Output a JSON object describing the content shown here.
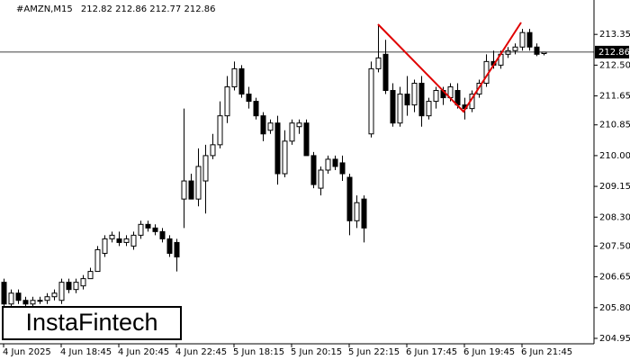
{
  "chart_data": {
    "type": "candlestick",
    "title": "#AMZN,M15",
    "header_ohlc": [
      212.82,
      212.86,
      212.77,
      212.86
    ],
    "last_price": 212.86,
    "watermark": "InstaFintech",
    "categories": [
      "4 Jun 2025",
      null,
      null,
      null,
      null,
      null,
      null,
      null,
      "4 Jun 18:45",
      null,
      null,
      null,
      null,
      null,
      null,
      null,
      "4 Jun 20:45",
      null,
      null,
      null,
      null,
      null,
      null,
      null,
      "4 Jun 22:45",
      null,
      null,
      null,
      null,
      null,
      null,
      null,
      "5 Jun 18:15",
      null,
      null,
      null,
      null,
      null,
      null,
      null,
      "5 Jun 20:15",
      null,
      null,
      null,
      null,
      null,
      null,
      null,
      "5 Jun 22:15",
      null,
      null,
      null,
      null,
      null,
      null,
      null,
      "6 Jun 17:45",
      null,
      null,
      null,
      null,
      null,
      null,
      null,
      "6 Jun 19:45",
      null,
      null,
      null,
      null,
      null,
      null,
      null,
      "6 Jun 21:45",
      null,
      null,
      null
    ],
    "open": [
      206.5,
      205.9,
      206.2,
      206.0,
      205.9,
      206.0,
      206.0,
      206.1,
      206.0,
      206.5,
      206.3,
      206.4,
      206.6,
      206.8,
      207.3,
      207.7,
      207.7,
      207.6,
      207.5,
      207.8,
      208.1,
      208.0,
      207.9,
      207.7,
      207.6,
      208.8,
      209.3,
      208.8,
      209.3,
      210.0,
      210.3,
      211.1,
      211.9,
      212.4,
      211.7,
      211.5,
      211.1,
      210.7,
      210.9,
      209.5,
      210.4,
      210.8,
      210.9,
      210.0,
      209.1,
      209.6,
      209.9,
      209.8,
      209.4,
      208.2,
      208.8,
      210.6,
      212.4,
      212.8,
      211.8,
      210.9,
      211.7,
      211.4,
      212.0,
      211.1,
      211.5,
      211.8,
      211.6,
      211.8,
      211.4,
      211.3,
      211.7,
      212.0,
      212.6,
      212.5,
      212.8,
      212.9,
      213.0,
      213.4,
      213.0,
      212.82
    ],
    "high": [
      206.6,
      206.3,
      206.3,
      206.1,
      206.1,
      206.1,
      206.2,
      206.3,
      206.6,
      206.6,
      206.6,
      206.7,
      206.9,
      207.5,
      207.8,
      207.9,
      207.9,
      207.8,
      207.9,
      208.2,
      208.2,
      208.1,
      208.0,
      207.8,
      207.7,
      211.3,
      209.5,
      210.2,
      210.3,
      210.6,
      211.5,
      212.2,
      212.6,
      212.5,
      211.9,
      211.6,
      211.2,
      211.0,
      211.1,
      210.7,
      211.0,
      211.0,
      211.0,
      210.1,
      209.7,
      210.0,
      210.0,
      210.0,
      209.5,
      208.9,
      208.9,
      212.6,
      213.6,
      213.2,
      212.0,
      211.9,
      212.2,
      212.1,
      212.2,
      211.6,
      211.9,
      211.9,
      212.0,
      212.0,
      211.6,
      211.8,
      212.1,
      212.8,
      212.9,
      212.9,
      213.0,
      213.1,
      213.5,
      213.5,
      213.1,
      212.86
    ],
    "low": [
      205.7,
      205.8,
      205.9,
      205.8,
      205.8,
      205.9,
      205.9,
      206.0,
      205.9,
      206.2,
      206.2,
      206.3,
      206.6,
      206.8,
      207.2,
      207.6,
      207.5,
      207.5,
      207.4,
      207.7,
      207.9,
      207.8,
      207.6,
      207.2,
      206.8,
      208.0,
      208.8,
      208.6,
      208.4,
      209.9,
      210.2,
      210.9,
      211.8,
      211.6,
      211.3,
      211.0,
      210.4,
      210.6,
      209.2,
      209.4,
      210.3,
      210.6,
      210.0,
      209.1,
      208.9,
      209.5,
      209.6,
      209.3,
      207.8,
      208.0,
      207.6,
      210.5,
      212.3,
      211.7,
      210.8,
      210.8,
      211.1,
      211.2,
      210.8,
      211.0,
      211.3,
      211.4,
      211.5,
      211.3,
      211.0,
      211.2,
      211.6,
      211.9,
      212.4,
      212.4,
      212.7,
      212.8,
      212.9,
      212.9,
      212.75,
      212.77
    ],
    "close": [
      205.9,
      206.2,
      206.0,
      205.9,
      206.0,
      206.0,
      206.1,
      206.2,
      206.5,
      206.3,
      206.5,
      206.6,
      206.8,
      207.4,
      207.7,
      207.8,
      207.6,
      207.7,
      207.8,
      208.1,
      208.0,
      207.9,
      207.7,
      207.3,
      207.2,
      209.3,
      208.8,
      209.7,
      210.0,
      210.3,
      211.1,
      211.9,
      212.4,
      211.7,
      211.5,
      211.1,
      210.6,
      210.9,
      209.5,
      210.4,
      210.9,
      210.9,
      210.0,
      209.2,
      209.6,
      209.9,
      209.7,
      209.5,
      208.2,
      208.7,
      208.0,
      212.4,
      212.7,
      211.8,
      210.9,
      211.7,
      211.4,
      212.0,
      211.1,
      211.5,
      211.8,
      211.6,
      211.9,
      211.4,
      211.3,
      211.7,
      212.0,
      212.6,
      212.5,
      212.8,
      212.9,
      213.0,
      213.4,
      213.0,
      212.8,
      212.86
    ],
    "up_color": "#ffffff",
    "down_color": "#000000",
    "pattern_color": "#e00000",
    "ylim": [
      204.8,
      214.3
    ],
    "yticks": [
      213.35,
      {
        "value": 212.5,
        "label": "212.50"
      },
      211.65,
      210.85,
      {
        "value": 210,
        "label": "210.00"
      },
      209.15,
      {
        "value": 208.3,
        "label": "208.30"
      },
      {
        "value": 207.5,
        "label": "207.50"
      },
      206.65,
      {
        "value": 205.8,
        "label": "205.80"
      },
      204.95
    ],
    "grid": false
  }
}
